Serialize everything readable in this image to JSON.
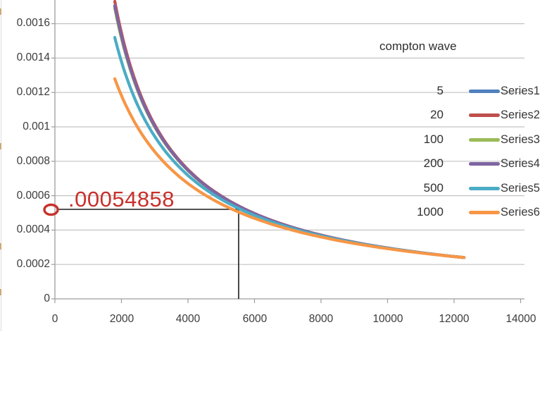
{
  "chart_data": {
    "type": "line",
    "legend_title": "compton wave",
    "grid": true,
    "legend_position": "right-top",
    "x_axis": {
      "min": 0,
      "max": 14000,
      "tick_step": 2000,
      "tick_labels": [
        "0",
        "2000",
        "4000",
        "6000",
        "8000",
        "10000",
        "12000",
        "14000"
      ]
    },
    "y_axis": {
      "min": 0,
      "max": 0.00175,
      "tick_step": 0.0002,
      "tick_labels": [
        "0.0016",
        "0.0014",
        "0.0012",
        "0.001",
        "0.0008",
        "0.0006",
        "0.0004",
        "0.0002",
        "0"
      ]
    },
    "series": [
      {
        "name": "Series1",
        "compton_wave": "5",
        "color": "#4F81BD",
        "x_start": 1800,
        "x_end": 12300,
        "points": [
          [
            1800,
            0.0017
          ],
          [
            3000,
            0.001003
          ],
          [
            5500,
            0.000541
          ],
          [
            8000,
            0.00037
          ],
          [
            12300,
            0.00024
          ]
        ],
        "curve_model": {
          "type": "hyperbola y=a/(x+b)",
          "a": 2.9342,
          "b": -74.0
        }
      },
      {
        "name": "Series2",
        "compton_wave": "20",
        "color": "#C0504D",
        "x_start": 1800,
        "x_end": 12300,
        "points": [
          [
            1800,
            0.00173
          ],
          [
            3000,
            0.001012
          ],
          [
            5500,
            0.000543
          ],
          [
            8000,
            0.000371
          ],
          [
            12300,
            0.00024
          ]
        ],
        "curve_model": {
          "type": "hyperbola y=a/(x+b)",
          "a": 2.9259,
          "b": -108.6
        }
      },
      {
        "name": "Series3",
        "compton_wave": "100",
        "color": "#9BBB59",
        "x_start": 1800,
        "x_end": 12300,
        "points": [
          [
            1800,
            0.00169
          ],
          [
            3000,
            0.001
          ],
          [
            5500,
            0.00054
          ],
          [
            8000,
            0.00037
          ],
          [
            12300,
            0.00024
          ]
        ],
        "curve_model": {
          "type": "hyperbola y=a/(x+b)",
          "a": 2.9371,
          "b": -62.2
        }
      },
      {
        "name": "Series4",
        "compton_wave": "200",
        "color": "#8064A2",
        "x_start": 1800,
        "x_end": 12300,
        "points": [
          [
            1800,
            0.001705
          ],
          [
            3000,
            0.001004
          ],
          [
            5500,
            0.000541
          ],
          [
            8000,
            0.00037
          ],
          [
            12300,
            0.00024
          ]
        ],
        "curve_model": {
          "type": "hyperbola y=a/(x+b)",
          "a": 2.9329,
          "b": -79.8
        }
      },
      {
        "name": "Series5",
        "compton_wave": "500",
        "color": "#4BACC6",
        "x_start": 1800,
        "x_end": 12300,
        "points": [
          [
            1800,
            0.00152
          ],
          [
            3000,
            0.000944
          ],
          [
            5500,
            0.000528
          ],
          [
            8000,
            0.000366
          ],
          [
            12300,
            0.00024
          ]
        ],
        "curve_model": {
          "type": "hyperbola y=a/(x+b)",
          "a": 2.9925,
          "b": 168.8
        }
      },
      {
        "name": "Series6",
        "compton_wave": "1000",
        "color": "#F79646",
        "x_start": 1800,
        "x_end": 12300,
        "points": [
          [
            1800,
            0.00128
          ],
          [
            3000,
            0.000856
          ],
          [
            5500,
            0.000507
          ],
          [
            8000,
            0.00036
          ],
          [
            12300,
            0.00024
          ]
        ],
        "curve_model": {
          "type": "hyperbola y=a/(x+b)",
          "a": 3.1016,
          "b": 623.1
        }
      }
    ],
    "annotation": {
      "label": ".00054858",
      "y_value": 0.00054858,
      "marked_x": 5500,
      "color": "#C7302B",
      "crosshair_color": "#1a1a1a"
    }
  },
  "legend": {
    "title": "compton wave",
    "entries": [
      {
        "value": "5",
        "label": "Series1",
        "color": "#4F81BD"
      },
      {
        "value": "20",
        "label": "Series2",
        "color": "#C0504D"
      },
      {
        "value": "100",
        "label": "Series3",
        "color": "#9BBB59"
      },
      {
        "value": "200",
        "label": "Series4",
        "color": "#8064A2"
      },
      {
        "value": "500",
        "label": "Series5",
        "color": "#4BACC6"
      },
      {
        "value": "1000",
        "label": "Series6",
        "color": "#F79646"
      }
    ]
  },
  "colors": {
    "gridline": "#C3C3C3",
    "axis": "#9D9D9D",
    "annotation_red": "#C7302B",
    "crosshair_black": "#1a1a1a"
  }
}
